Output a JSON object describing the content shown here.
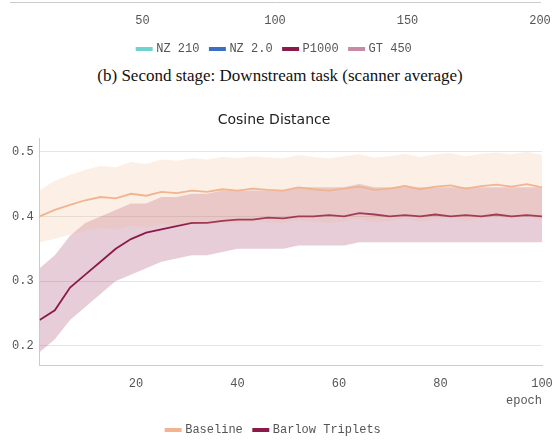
{
  "caption": "(b) Second stage: Downstream task (scanner average)",
  "chart_data": [
    {
      "type": "line",
      "x": [],
      "xlim": [
        0,
        200
      ],
      "xticks": [
        50,
        100,
        150,
        200
      ],
      "tick_labels": "x",
      "grid": false,
      "legend": "bottom",
      "series": [
        {
          "name": "NZ 210",
          "color": "#6fd3cf",
          "values": []
        },
        {
          "name": "NZ 2.0",
          "color": "#3a6fc4",
          "values": []
        },
        {
          "name": "P1000",
          "color": "#8b1a4a",
          "values": []
        },
        {
          "name": "GT 450",
          "color": "#c98aa8",
          "values": []
        }
      ]
    },
    {
      "type": "line",
      "title": "Cosine Distance",
      "x_label": "epoch",
      "x": [
        1,
        4,
        7,
        10,
        13,
        16,
        19,
        22,
        25,
        28,
        31,
        34,
        37,
        40,
        43,
        46,
        49,
        52,
        55,
        58,
        61,
        64,
        67,
        70,
        73,
        76,
        79,
        82,
        85,
        88,
        91,
        94,
        97,
        100
      ],
      "xlim": [
        1,
        100
      ],
      "xticks": [
        20,
        40,
        60,
        80,
        100
      ],
      "ylim": [
        0.17,
        0.52
      ],
      "yticks": [
        0.2,
        0.3,
        0.4,
        0.5
      ],
      "grid": true,
      "legend": "bottom",
      "series": [
        {
          "name": "Baseline",
          "color": "#f2b48f",
          "values": [
            0.4,
            0.41,
            0.418,
            0.425,
            0.43,
            0.428,
            0.435,
            0.432,
            0.438,
            0.436,
            0.44,
            0.438,
            0.442,
            0.44,
            0.443,
            0.441,
            0.44,
            0.445,
            0.442,
            0.44,
            0.443,
            0.446,
            0.441,
            0.443,
            0.447,
            0.442,
            0.446,
            0.448,
            0.443,
            0.447,
            0.449,
            0.446,
            0.45,
            0.445
          ],
          "lower": [
            0.36,
            0.365,
            0.372,
            0.378,
            0.382,
            0.38,
            0.386,
            0.383,
            0.388,
            0.386,
            0.39,
            0.388,
            0.392,
            0.39,
            0.393,
            0.391,
            0.39,
            0.395,
            0.392,
            0.39,
            0.393,
            0.396,
            0.391,
            0.393,
            0.397,
            0.392,
            0.396,
            0.398,
            0.393,
            0.397,
            0.399,
            0.396,
            0.4,
            0.395
          ],
          "upper": [
            0.44,
            0.455,
            0.464,
            0.472,
            0.478,
            0.476,
            0.484,
            0.481,
            0.488,
            0.486,
            0.49,
            0.488,
            0.492,
            0.49,
            0.493,
            0.491,
            0.49,
            0.495,
            0.492,
            0.49,
            0.493,
            0.496,
            0.491,
            0.493,
            0.497,
            0.492,
            0.496,
            0.498,
            0.493,
            0.497,
            0.499,
            0.496,
            0.5,
            0.495
          ]
        },
        {
          "name": "Barlow Triplets",
          "color": "#8b1a4a",
          "values": [
            0.24,
            0.255,
            0.29,
            0.31,
            0.33,
            0.35,
            0.365,
            0.375,
            0.38,
            0.385,
            0.39,
            0.39,
            0.393,
            0.395,
            0.395,
            0.398,
            0.397,
            0.4,
            0.4,
            0.402,
            0.4,
            0.405,
            0.403,
            0.4,
            0.402,
            0.4,
            0.403,
            0.4,
            0.402,
            0.4,
            0.403,
            0.4,
            0.402,
            0.4
          ],
          "lower": [
            0.19,
            0.21,
            0.24,
            0.26,
            0.28,
            0.3,
            0.31,
            0.32,
            0.33,
            0.335,
            0.34,
            0.34,
            0.345,
            0.35,
            0.35,
            0.35,
            0.35,
            0.355,
            0.355,
            0.355,
            0.355,
            0.36,
            0.36,
            0.36,
            0.36,
            0.36,
            0.36,
            0.36,
            0.36,
            0.36,
            0.36,
            0.36,
            0.36,
            0.36
          ],
          "upper": [
            0.32,
            0.34,
            0.37,
            0.39,
            0.4,
            0.41,
            0.42,
            0.42,
            0.43,
            0.43,
            0.435,
            0.435,
            0.44,
            0.44,
            0.44,
            0.44,
            0.44,
            0.445,
            0.445,
            0.445,
            0.445,
            0.45,
            0.445,
            0.445,
            0.445,
            0.445,
            0.445,
            0.445,
            0.445,
            0.445,
            0.445,
            0.445,
            0.445,
            0.445
          ]
        }
      ]
    }
  ]
}
